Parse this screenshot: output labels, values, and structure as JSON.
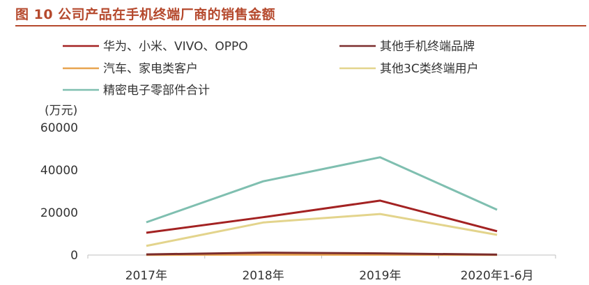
{
  "figure": {
    "title": "图 10  公司产品在手机终端厂商的销售金额"
  },
  "chart_data": {
    "type": "line",
    "unit_label": "(万元)",
    "categories": [
      "2017年",
      "2018年",
      "2019年",
      "2020年1-6月"
    ],
    "ylim": [
      0,
      60000
    ],
    "yticks": [
      "0",
      "20000",
      "40000",
      "60000"
    ],
    "ytick_values": [
      0,
      20000,
      40000,
      60000
    ],
    "grid": false,
    "legend_position": "top",
    "series": [
      {
        "name": "华为、小米、VIVO、OPPO",
        "color": "#a32222",
        "values": [
          10500,
          17800,
          25600,
          11200
        ]
      },
      {
        "name": "其他手机终端品牌",
        "color": "#7b2d2d",
        "values": [
          300,
          1100,
          800,
          200
        ]
      },
      {
        "name": "汽车、家电类客户",
        "color": "#e8a450",
        "values": [
          100,
          200,
          150,
          50
        ]
      },
      {
        "name": "其他3C类终端用户",
        "color": "#e3d48c",
        "values": [
          4300,
          15300,
          19300,
          9500
        ]
      },
      {
        "name": "精密电子零部件合计",
        "color": "#7fbfb0",
        "values": [
          15400,
          34700,
          46000,
          21300
        ]
      }
    ]
  }
}
